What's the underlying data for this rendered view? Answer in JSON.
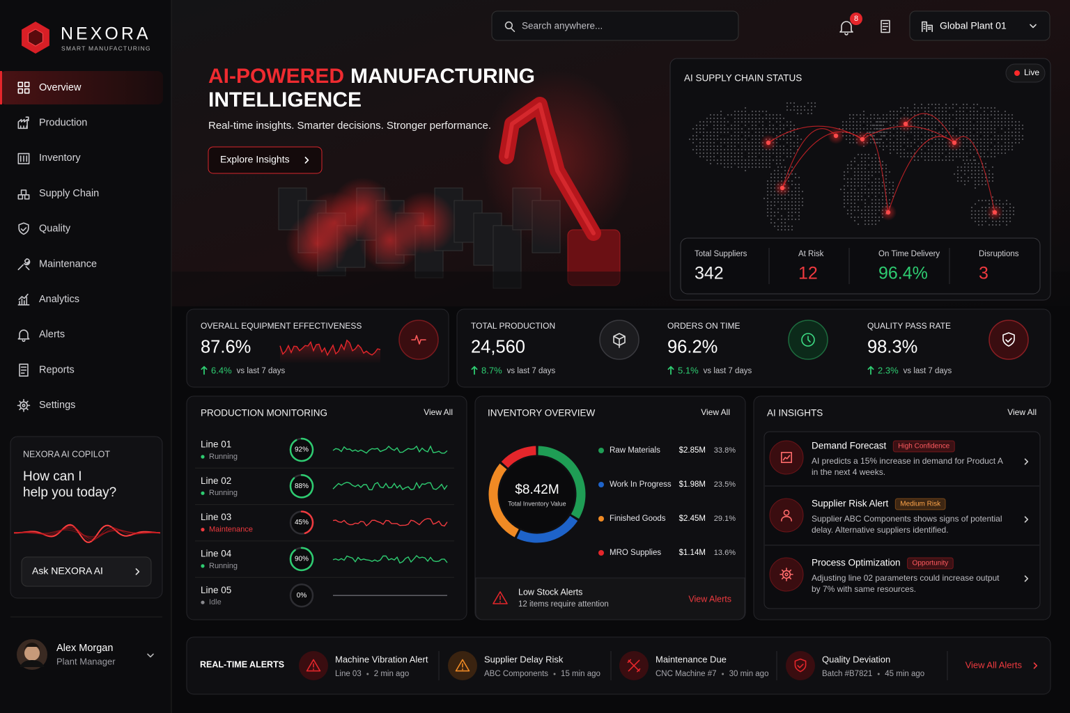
{
  "brand": {
    "name": "NEXORA",
    "tagline": "SMART MANUFACTURING"
  },
  "nav": [
    {
      "label": "Overview",
      "active": true
    },
    {
      "label": "Production",
      "active": false
    },
    {
      "label": "Inventory",
      "active": false
    },
    {
      "label": "Supply Chain",
      "active": false
    },
    {
      "label": "Quality",
      "active": false
    },
    {
      "label": "Maintenance",
      "active": false
    },
    {
      "label": "Analytics",
      "active": false
    },
    {
      "label": "Alerts",
      "active": false
    },
    {
      "label": "Reports",
      "active": false
    },
    {
      "label": "Settings",
      "active": false
    }
  ],
  "copilot": {
    "label": "NEXORA AI COPILOT",
    "prompt_lines": [
      "How can I",
      "help you today?"
    ],
    "button": "Ask NEXORA AI"
  },
  "user": {
    "name": "Alex Morgan",
    "role": "Plant Manager"
  },
  "topbar": {
    "search_placeholder": "Search anywhere...",
    "notification_count": "8",
    "plant": "Global Plant 01"
  },
  "hero": {
    "title_accent": "AI-POWERED",
    "title_rest": "MANUFACTURING",
    "title_line2": "INTELLIGENCE",
    "subtitle": "Real-time insights. Smarter decisions. Stronger performance.",
    "button": "Explore Insights"
  },
  "supply_chain": {
    "title": "AI SUPPLY CHAIN STATUS",
    "status": "Live",
    "stats": [
      {
        "label": "Total Suppliers",
        "value": "342",
        "color": "#f2f2f2"
      },
      {
        "label": "At Risk",
        "value": "12",
        "color": "#ef3a3f"
      },
      {
        "label": "On Time Delivery",
        "value": "96.4%",
        "color": "#2ecc71"
      },
      {
        "label": "Disruptions",
        "value": "3",
        "color": "#ef3a3f"
      }
    ]
  },
  "kpis": [
    {
      "label": "OVERALL EQUIPMENT EFFECTIVENESS",
      "value": "87.6%",
      "change": "6.4%",
      "period": "vs last 7 days"
    },
    {
      "label": "TOTAL PRODUCTION",
      "value": "24,560",
      "change": "8.7%",
      "period": "vs last 7 days"
    },
    {
      "label": "ORDERS ON TIME",
      "value": "96.2%",
      "change": "5.1%",
      "period": "vs last 7 days"
    },
    {
      "label": "QUALITY PASS RATE",
      "value": "98.3%",
      "change": "2.3%",
      "period": "vs last 7 days"
    }
  ],
  "production": {
    "title": "PRODUCTION MONITORING",
    "link": "View All",
    "lines": [
      {
        "name": "Line 01",
        "status": "Running",
        "color": "#2ecc71",
        "utilization": 92,
        "utilization_label": "92%"
      },
      {
        "name": "Line 02",
        "status": "Running",
        "color": "#2ecc71",
        "utilization": 88,
        "utilization_label": "88%"
      },
      {
        "name": "Line 03",
        "status": "Maintenance",
        "color": "#ef3a3f",
        "utilization": 45,
        "utilization_label": "45%"
      },
      {
        "name": "Line 04",
        "status": "Running",
        "color": "#2ecc71",
        "utilization": 90,
        "utilization_label": "90%"
      },
      {
        "name": "Line 05",
        "status": "Idle",
        "color": "#8a8a8f",
        "utilization": 0,
        "utilization_label": "0%"
      }
    ]
  },
  "inventory": {
    "title": "INVENTORY OVERVIEW",
    "link": "View All",
    "total": "$8.42M",
    "total_label": "Total Inventory Value",
    "items": [
      {
        "name": "Raw Materials",
        "amount": "$2.85M",
        "share": 33.8,
        "share_label": "33.8%",
        "color": "#1f9d55"
      },
      {
        "name": "Work In Progress",
        "amount": "$1.98M",
        "share": 23.5,
        "share_label": "23.5%",
        "color": "#1e63c9"
      },
      {
        "name": "Finished Goods",
        "amount": "$2.45M",
        "share": 29.1,
        "share_label": "29.1%",
        "color": "#f08a24"
      },
      {
        "name": "MRO Supplies",
        "amount": "$1.14M",
        "share": 13.6,
        "share_label": "13.6%",
        "color": "#e5262b"
      }
    ],
    "alert": {
      "title": "Low Stock Alerts",
      "text": "12 items require attention",
      "link": "View Alerts"
    }
  },
  "insights": {
    "title": "AI INSIGHTS",
    "link": "View All",
    "items": [
      {
        "title": "Demand Forecast",
        "badge": "High Confidence",
        "badge_color": "#e5262b",
        "lines": [
          "AI predicts a 15% increase in demand for Product A",
          "in the next 4 weeks."
        ]
      },
      {
        "title": "Supplier Risk Alert",
        "badge": "Medium Risk",
        "badge_color": "#f08a24",
        "lines": [
          "Supplier ABC Components shows signs of potential",
          "delay. Alternative suppliers identified."
        ]
      },
      {
        "title": "Process Optimization",
        "badge": "Opportunity",
        "badge_color": "#e5262b",
        "lines": [
          "Adjusting line 02 parameters could increase output",
          "by 7% with same resources."
        ]
      }
    ]
  },
  "alerts": {
    "title": "REAL-TIME ALERTS",
    "link": "View All Alerts",
    "items": [
      {
        "title": "Machine Vibration Alert",
        "source": "Line 03",
        "time": "2 min ago",
        "color": "#e5262b"
      },
      {
        "title": "Supplier Delay Risk",
        "source": "ABC Components",
        "time": "15 min ago",
        "color": "#f08a24"
      },
      {
        "title": "Maintenance Due",
        "source": "CNC Machine #7",
        "time": "30 min ago",
        "color": "#e5262b"
      },
      {
        "title": "Quality Deviation",
        "source": "Batch #B7821",
        "time": "45 min ago",
        "color": "#e5262b"
      }
    ]
  }
}
